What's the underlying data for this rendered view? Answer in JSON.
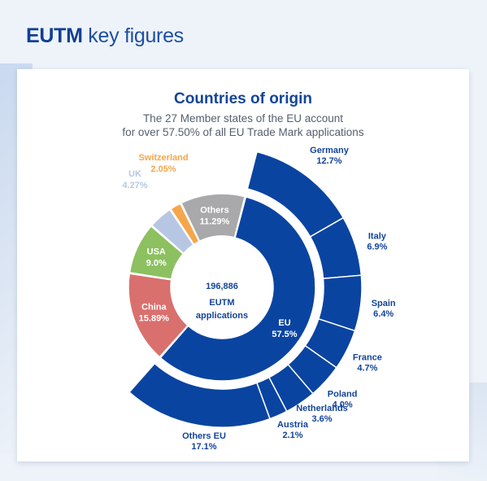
{
  "page_title_bold": "EUTM",
  "page_title_rest": "key figures",
  "chart_data": {
    "type": "pie",
    "title": "Countries of origin",
    "subtitle_line1": "The 27 Member states of the EU account",
    "subtitle_line2": "for over 57.50% of all EU Trade Mark applications",
    "center_value": "196,886",
    "center_label1": "EUTM",
    "center_label2": "applications",
    "inner_slices": [
      {
        "name": "EU",
        "value": 57.5,
        "label": "57.5%",
        "color": "#0a44a1"
      },
      {
        "name": "China",
        "value": 15.89,
        "label": "15.89%",
        "color": "#d9706e"
      },
      {
        "name": "USA",
        "value": 9.0,
        "label": "9.0%",
        "color": "#8dc060"
      },
      {
        "name": "UK",
        "value": 4.27,
        "label": "4.27%",
        "color": "#b7c7e3"
      },
      {
        "name": "Switzerland",
        "value": 2.05,
        "label": "2.05%",
        "color": "#f5a64b"
      },
      {
        "name": "Others",
        "value": 11.29,
        "label": "11.29%",
        "color": "#a9a9ab"
      }
    ],
    "outer_slices": [
      {
        "name": "Germany",
        "value": 12.7,
        "label": "12.7%"
      },
      {
        "name": "Italy",
        "value": 6.9,
        "label": "6.9%"
      },
      {
        "name": "Spain",
        "value": 6.4,
        "label": "6.4%"
      },
      {
        "name": "France",
        "value": 4.7,
        "label": "4.7%"
      },
      {
        "name": "Poland",
        "value": 4.0,
        "label": "4.0%"
      },
      {
        "name": "Netherlands",
        "value": 3.6,
        "label": "3.6%"
      },
      {
        "name": "Austria",
        "value": 2.1,
        "label": "2.1%"
      },
      {
        "name": "Others EU",
        "value": 17.1,
        "label": "17.1%"
      }
    ],
    "outer_color": "#0a44a1",
    "label_color": "#13449a"
  }
}
